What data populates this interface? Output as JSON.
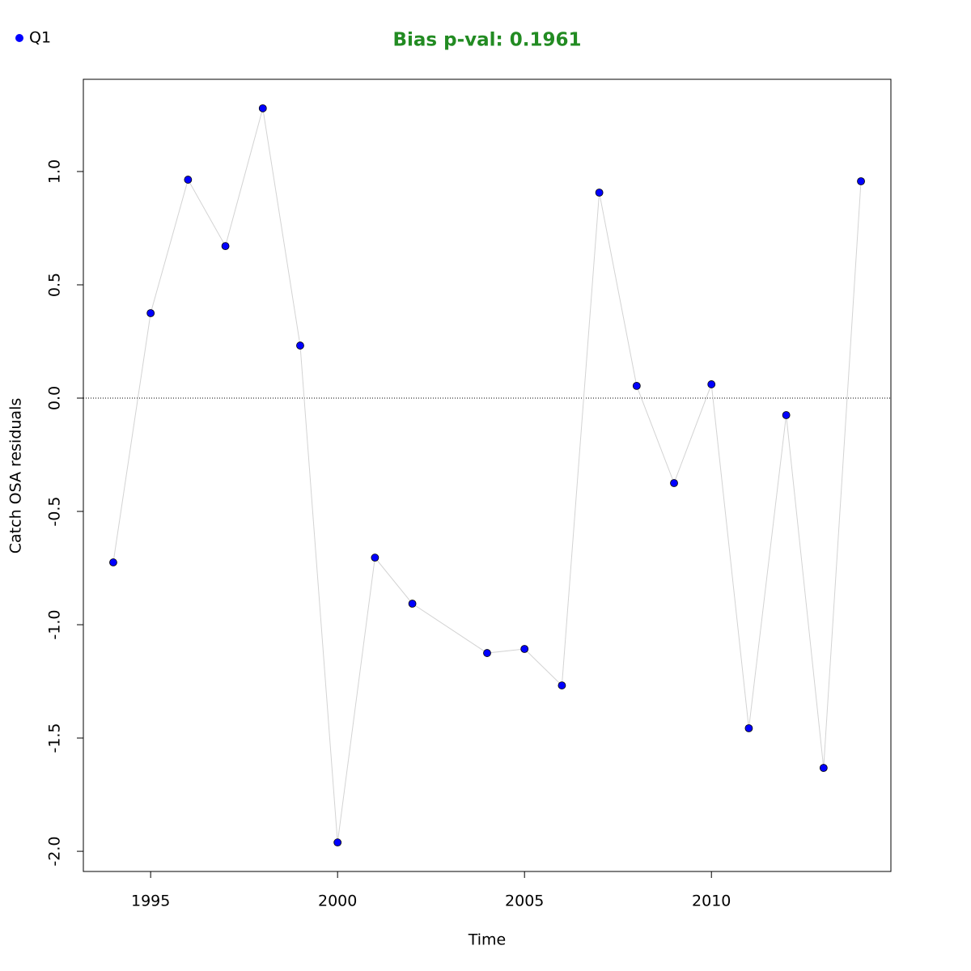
{
  "chart_data": {
    "type": "line",
    "title": "Bias p-val: 0.1961",
    "title_color": "#228b22",
    "x_label": "Time",
    "y_label": "Catch OSA residuals",
    "x": [
      1994,
      1995,
      1996,
      1997,
      1998,
      1999,
      2000,
      2001,
      2002,
      2004,
      2005,
      2006,
      2007,
      2008,
      2009,
      2010,
      2011,
      2012,
      2013,
      2014
    ],
    "series": [
      {
        "name": "Q1",
        "color": "#0000ff",
        "line_color": "#d3d3d3",
        "values": [
          -0.725,
          0.375,
          0.964,
          0.671,
          1.279,
          0.232,
          -1.961,
          -0.704,
          -0.907,
          -1.125,
          -1.107,
          -1.268,
          0.907,
          0.054,
          -0.375,
          0.061,
          -1.457,
          -0.075,
          -1.632,
          0.957
        ]
      }
    ],
    "xlim": [
      1993.2,
      2014.8
    ],
    "xticks": [
      1995,
      2000,
      2005,
      2010
    ],
    "ylim": [
      -2.089,
      1.407
    ],
    "yticks": [
      {
        "value": -2,
        "label": "-2.0"
      },
      -1.5,
      {
        "value": -1,
        "label": "-1.0"
      },
      -0.5,
      {
        "value": 0,
        "label": "0.0"
      },
      0.5,
      {
        "value": 1,
        "label": "1.0"
      }
    ],
    "reference_line": 0,
    "legend_position": "top-left"
  }
}
